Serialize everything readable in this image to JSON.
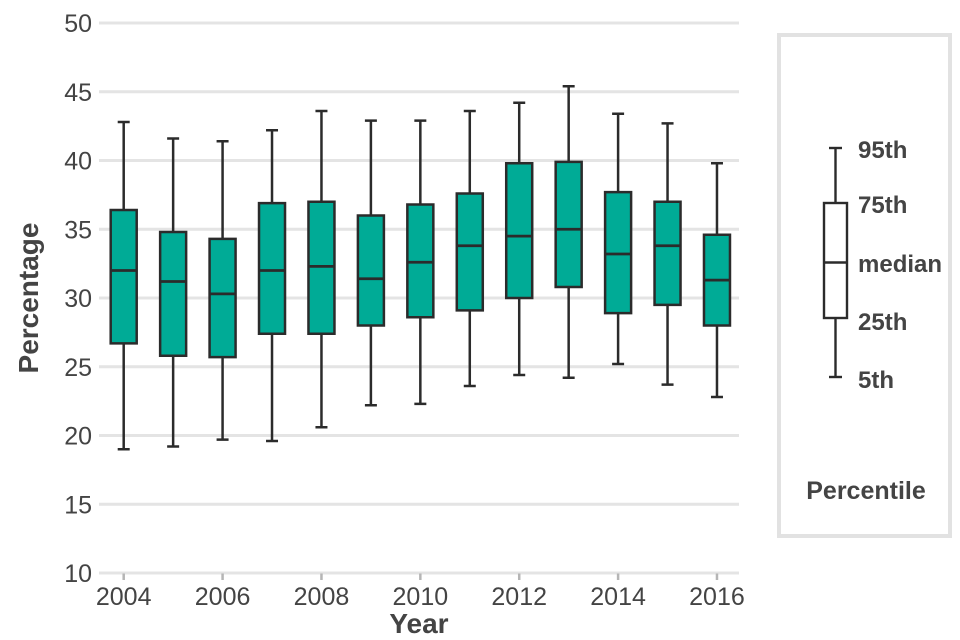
{
  "chart_data": {
    "type": "boxplot",
    "title": "",
    "xlabel": "Year",
    "ylabel": "Percentage",
    "ylim": [
      10,
      50
    ],
    "y_ticks": [
      10,
      15,
      20,
      25,
      30,
      35,
      40,
      45,
      50
    ],
    "x_tick_years": [
      2004,
      2006,
      2008,
      2010,
      2012,
      2014,
      2016
    ],
    "grid": "horizontal",
    "legend_position": "right-panel",
    "colors": {
      "box_fill": "#00AB96",
      "box_stroke": "#2B2B2B",
      "grid_line": "#E4E4E4",
      "axis_text": "#444444",
      "tick_mark": "#B5B5B5",
      "legend_border": "#E2E2E2",
      "legend_box_fill": "#FFFFFF"
    },
    "series": [
      {
        "year": 2004,
        "p5": 19.0,
        "p25": 26.7,
        "median": 32.0,
        "p75": 36.4,
        "p95": 42.8
      },
      {
        "year": 2005,
        "p5": 19.2,
        "p25": 25.8,
        "median": 31.2,
        "p75": 34.8,
        "p95": 41.6
      },
      {
        "year": 2006,
        "p5": 19.7,
        "p25": 25.7,
        "median": 30.3,
        "p75": 34.3,
        "p95": 41.4
      },
      {
        "year": 2007,
        "p5": 19.6,
        "p25": 27.4,
        "median": 32.0,
        "p75": 36.9,
        "p95": 42.2
      },
      {
        "year": 2008,
        "p5": 20.6,
        "p25": 27.4,
        "median": 32.3,
        "p75": 37.0,
        "p95": 43.6
      },
      {
        "year": 2009,
        "p5": 22.2,
        "p25": 28.0,
        "median": 31.4,
        "p75": 36.0,
        "p95": 42.9
      },
      {
        "year": 2010,
        "p5": 22.3,
        "p25": 28.6,
        "median": 32.6,
        "p75": 36.8,
        "p95": 42.9
      },
      {
        "year": 2011,
        "p5": 23.6,
        "p25": 29.1,
        "median": 33.8,
        "p75": 37.6,
        "p95": 43.6
      },
      {
        "year": 2012,
        "p5": 24.4,
        "p25": 30.0,
        "median": 34.5,
        "p75": 39.8,
        "p95": 44.2
      },
      {
        "year": 2013,
        "p5": 24.2,
        "p25": 30.8,
        "median": 35.0,
        "p75": 39.9,
        "p95": 45.4
      },
      {
        "year": 2014,
        "p5": 25.2,
        "p25": 28.9,
        "median": 33.2,
        "p75": 37.7,
        "p95": 43.4
      },
      {
        "year": 2015,
        "p5": 23.7,
        "p25": 29.5,
        "median": 33.8,
        "p75": 37.0,
        "p95": 42.7
      },
      {
        "year": 2016,
        "p5": 22.8,
        "p25": 28.0,
        "median": 31.3,
        "p75": 34.6,
        "p95": 39.8
      }
    ]
  },
  "legend": {
    "title": "Percentile",
    "labels": {
      "p95": "95th",
      "p75": "75th",
      "median": "median",
      "p25": "25th",
      "p5": "5th"
    }
  }
}
